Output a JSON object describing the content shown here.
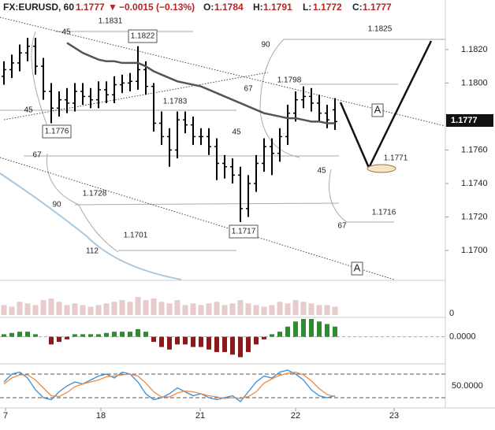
{
  "header": {
    "symbol": "FX:EURUSD, 60",
    "price": "1.1777",
    "change": "−0.0015 (−0.13%)",
    "ohlc": [
      {
        "label": "O:",
        "value": "1.1784"
      },
      {
        "label": "H:",
        "value": "1.1791"
      },
      {
        "label": "L:",
        "value": "1.1772"
      },
      {
        "label": "C:",
        "value": "1.1777"
      }
    ]
  },
  "chart_data": {
    "type": "ohlc",
    "color": "#000000",
    "open": [
      1.1804,
      1.1808,
      1.1812,
      1.1818,
      1.1822,
      1.181,
      1.1795,
      1.1785,
      1.179,
      1.1788,
      1.1795,
      1.1792,
      1.179,
      1.1796,
      1.1793,
      1.1799,
      1.18,
      1.1801,
      1.1808,
      1.1798,
      1.1776,
      1.1768,
      1.176,
      1.1778,
      1.1775,
      1.1768,
      1.1768,
      1.1762,
      1.1752,
      1.175,
      1.1745,
      1.1725,
      1.174,
      1.1752,
      1.1762,
      1.1758,
      1.1768,
      1.1782,
      1.179,
      1.1792,
      1.1788,
      1.1782,
      1.1784
    ],
    "high": [
      1.1813,
      1.1817,
      1.1823,
      1.1827,
      1.1827,
      1.1815,
      1.18,
      1.1795,
      1.1797,
      1.18,
      1.18,
      1.1797,
      1.1801,
      1.1801,
      1.1804,
      1.1805,
      1.1806,
      1.1822,
      1.1813,
      1.18,
      1.1783,
      1.1773,
      1.1783,
      1.1783,
      1.178,
      1.1773,
      1.1773,
      1.1767,
      1.1757,
      1.1755,
      1.175,
      1.1745,
      1.1757,
      1.1767,
      1.1767,
      1.1773,
      1.1787,
      1.1795,
      1.1798,
      1.1797,
      1.1793,
      1.1787,
      1.1791
    ],
    "low": [
      1.1799,
      1.1803,
      1.1807,
      1.1813,
      1.1805,
      1.179,
      1.1776,
      1.178,
      1.1782,
      1.1783,
      1.1787,
      1.1785,
      1.1785,
      1.1788,
      1.1788,
      1.1794,
      1.1795,
      1.1796,
      1.1793,
      1.1771,
      1.1763,
      1.175,
      1.1755,
      1.177,
      1.1763,
      1.1763,
      1.1757,
      1.1742,
      1.1743,
      1.174,
      1.1717,
      1.172,
      1.1735,
      1.1747,
      1.1745,
      1.1753,
      1.1763,
      1.1777,
      1.1785,
      1.1783,
      1.1777,
      1.1773,
      1.1772
    ],
    "close": [
      1.1808,
      1.1812,
      1.1818,
      1.1822,
      1.181,
      1.1795,
      1.1785,
      1.179,
      1.1788,
      1.1795,
      1.1792,
      1.179,
      1.1796,
      1.1793,
      1.1799,
      1.18,
      1.1801,
      1.1808,
      1.1798,
      1.1776,
      1.1768,
      1.176,
      1.1778,
      1.1775,
      1.1768,
      1.1768,
      1.1762,
      1.1752,
      1.175,
      1.1745,
      1.1725,
      1.174,
      1.1752,
      1.1762,
      1.1758,
      1.1768,
      1.1782,
      1.179,
      1.1792,
      1.1788,
      1.1782,
      1.1778,
      1.1777
    ],
    "ma": [
      null,
      null,
      null,
      null,
      null,
      null,
      null,
      null,
      1.1824,
      1.1821,
      1.1818,
      1.1816,
      1.1814,
      1.1813,
      1.1813,
      1.1812,
      1.1812,
      1.1812,
      1.181,
      1.1807,
      1.1805,
      1.1803,
      1.1801,
      1.18,
      1.1799,
      1.1798,
      1.1796,
      1.1794,
      1.1792,
      1.179,
      1.1788,
      1.1786,
      1.1784,
      1.1782,
      1.1781,
      1.178,
      1.1779,
      1.1779,
      1.1778,
      1.1777,
      1.1777,
      1.1776,
      1.1776
    ],
    "ylim": [
      1.16826,
      1.18496
    ],
    "yticks": [
      {
        "value": 1.17,
        "label": "1.1700"
      },
      {
        "value": 1.172,
        "label": "1.1720"
      },
      {
        "value": 1.174,
        "label": "1.1740"
      },
      {
        "value": 1.176,
        "label": "1.1760"
      },
      {
        "value": 1.18,
        "label": "1.1800"
      },
      {
        "value": 1.182,
        "label": "1.1820"
      }
    ],
    "xlim": [
      -0.5,
      56
    ],
    "xticks": [
      {
        "value": 0.2,
        "label": "7"
      },
      {
        "value": 12.3,
        "label": "18"
      },
      {
        "value": 24.9,
        "label": "21"
      },
      {
        "value": 37,
        "label": "22"
      },
      {
        "value": 49.5,
        "label": "23"
      }
    ],
    "volume": {
      "values": [
        30,
        25,
        40,
        35,
        30,
        45,
        50,
        40,
        30,
        35,
        30,
        25,
        30,
        35,
        40,
        45,
        40,
        55,
        45,
        50,
        40,
        35,
        45,
        30,
        35,
        30,
        35,
        40,
        30,
        35,
        45,
        35,
        30,
        25,
        30,
        40,
        35,
        45,
        40,
        35,
        30,
        30,
        25
      ],
      "ylim": [
        0,
        100
      ],
      "yticks": [
        0
      ],
      "color": "#d9a9a9"
    },
    "macd": {
      "values": [
        0.0001,
        0.00015,
        0.0002,
        0.0002,
        0.0001,
        0,
        -0.0003,
        -0.0002,
        -0.0001,
        0.0001,
        0.0001,
        0.0001,
        0.0001,
        0.00015,
        0.0002,
        0.0002,
        0.0002,
        0.0003,
        0.0002,
        -0.0002,
        -0.0004,
        -0.0005,
        -0.0003,
        -0.0003,
        -0.0004,
        -0.0004,
        -0.0005,
        -0.0006,
        -0.0006,
        -0.0007,
        -0.0008,
        -0.0006,
        -0.0003,
        -0.0001,
        0.0001,
        0.0002,
        0.0004,
        0.0006,
        0.0007,
        0.0007,
        0.0006,
        0.0005,
        0.0004
      ],
      "ylim": [
        -0.001,
        0.0007
      ],
      "yticks": [
        {
          "value": 0,
          "label": "0.0000"
        }
      ],
      "up_color": "#2e8b2e",
      "down_color": "#8b1a1a"
    },
    "stoch": {
      "series": [
        {
          "color": "#3a8fd8",
          "values": [
            60,
            80,
            85,
            70,
            40,
            20,
            15,
            35,
            50,
            60,
            55,
            65,
            75,
            80,
            70,
            85,
            80,
            60,
            30,
            15,
            20,
            30,
            45,
            35,
            25,
            30,
            20,
            15,
            20,
            25,
            10,
            35,
            60,
            75,
            70,
            85,
            90,
            80,
            65,
            40,
            25,
            20,
            25
          ]
        },
        {
          "color": "#f08a3c",
          "values": [
            55,
            70,
            78,
            78,
            65,
            45,
            25,
            23,
            33,
            48,
            55,
            60,
            65,
            73,
            75,
            78,
            80,
            75,
            57,
            35,
            22,
            22,
            32,
            37,
            35,
            30,
            25,
            22,
            18,
            20,
            18,
            23,
            35,
            57,
            68,
            77,
            82,
            85,
            78,
            63,
            43,
            28,
            23
          ]
        }
      ],
      "ylim": [
        0,
        100
      ],
      "yticks": [
        {
          "value": 50,
          "label": "50.0000"
        }
      ],
      "bands": [
        20,
        80
      ]
    }
  },
  "annotations": [
    "1.1831",
    "1.1822",
    "1.1825",
    "1.1798",
    "1.1783",
    "1.1776",
    "1.1771",
    "1.1728",
    "1.1716",
    "1.1717",
    "1.1701",
    "45",
    "90",
    "67",
    "45",
    "45",
    "67",
    "45",
    "90",
    "67",
    "112",
    "A",
    "A"
  ]
}
